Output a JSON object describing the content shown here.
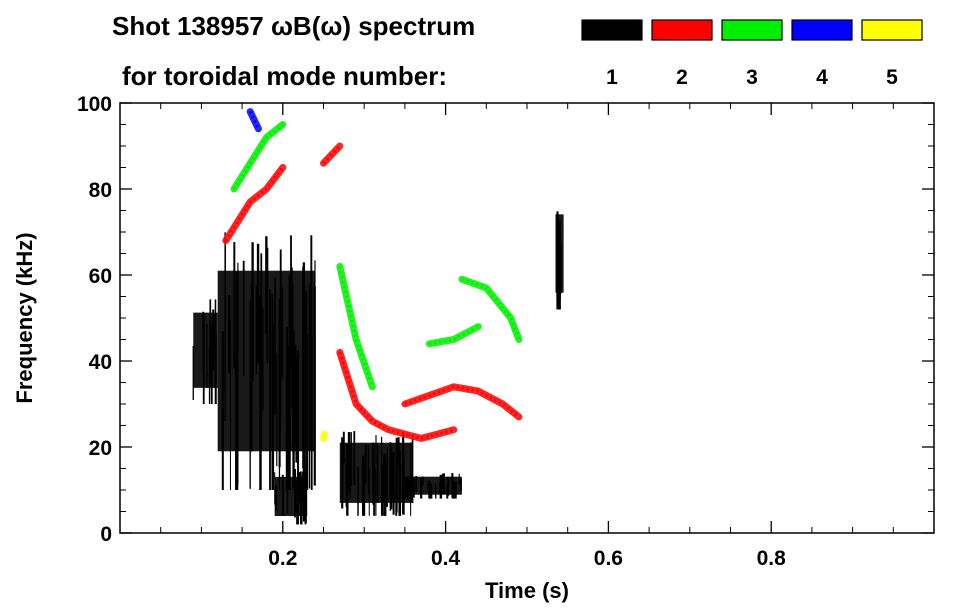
{
  "chart_data": {
    "type": "heatmap",
    "title_line1": "Shot 138957 ωB(ω) spectrum",
    "title_line2": "for toroidal mode number:",
    "xlabel": "Time (s)",
    "ylabel": "Frequency (kHz)",
    "xlim": [
      0.0,
      1.0
    ],
    "ylim": [
      0,
      100
    ],
    "xticks": [
      0.2,
      0.4,
      0.6,
      0.8
    ],
    "xtick_labels": [
      "0.2",
      "0.4",
      "0.6",
      "0.8"
    ],
    "yticks": [
      0,
      20,
      40,
      60,
      80,
      100
    ],
    "ytick_labels": [
      "0",
      "20",
      "40",
      "60",
      "80",
      "100"
    ],
    "legend": [
      {
        "label": "1",
        "color": "#000000"
      },
      {
        "label": "2",
        "color": "#ff0000"
      },
      {
        "label": "3",
        "color": "#00ee00"
      },
      {
        "label": "4",
        "color": "#0000ff"
      },
      {
        "label": "5",
        "color": "#ffff00"
      }
    ],
    "modes": [
      {
        "n": 1,
        "color": "#000000",
        "regions": [
          {
            "t0": 0.09,
            "t1": 0.12,
            "f0": 30,
            "f1": 55
          },
          {
            "t0": 0.12,
            "t1": 0.24,
            "f0": 10,
            "f1": 70
          },
          {
            "t0": 0.19,
            "t1": 0.23,
            "f0": 2,
            "f1": 15
          },
          {
            "t0": 0.27,
            "t1": 0.36,
            "f0": 4,
            "f1": 24
          },
          {
            "t0": 0.35,
            "t1": 0.42,
            "f0": 8,
            "f1": 14
          },
          {
            "t0": 0.535,
            "t1": 0.545,
            "f0": 52,
            "f1": 78
          }
        ]
      },
      {
        "n": 2,
        "color": "#ff0000",
        "tracks": [
          {
            "t": [
              0.13,
              0.16,
              0.18,
              0.2
            ],
            "f": [
              68,
              77,
              80,
              85
            ]
          },
          {
            "t": [
              0.25,
              0.27
            ],
            "f": [
              86,
              90
            ]
          },
          {
            "t": [
              0.27,
              0.29,
              0.31,
              0.33,
              0.35,
              0.37,
              0.39,
              0.41
            ],
            "f": [
              42,
              30,
              26,
              24,
              23,
              22,
              23,
              24
            ]
          },
          {
            "t": [
              0.35,
              0.38,
              0.41,
              0.44,
              0.47,
              0.49
            ],
            "f": [
              30,
              32,
              34,
              33,
              30,
              27
            ]
          }
        ]
      },
      {
        "n": 3,
        "color": "#00ee00",
        "tracks": [
          {
            "t": [
              0.14,
              0.16,
              0.18,
              0.2
            ],
            "f": [
              80,
              86,
              92,
              95
            ]
          },
          {
            "t": [
              0.27,
              0.29,
              0.31
            ],
            "f": [
              62,
              45,
              34
            ]
          },
          {
            "t": [
              0.38,
              0.41,
              0.44
            ],
            "f": [
              44,
              45,
              48
            ]
          },
          {
            "t": [
              0.42,
              0.45,
              0.48,
              0.49
            ],
            "f": [
              59,
              57,
              50,
              45
            ]
          }
        ]
      },
      {
        "n": 4,
        "color": "#0000ff",
        "tracks": [
          {
            "t": [
              0.16,
              0.17
            ],
            "f": [
              98,
              94
            ]
          }
        ]
      },
      {
        "n": 5,
        "color": "#ffff00",
        "tracks": [
          {
            "t": [
              0.25,
              0.251
            ],
            "f": [
              22,
              23
            ]
          }
        ]
      }
    ]
  }
}
